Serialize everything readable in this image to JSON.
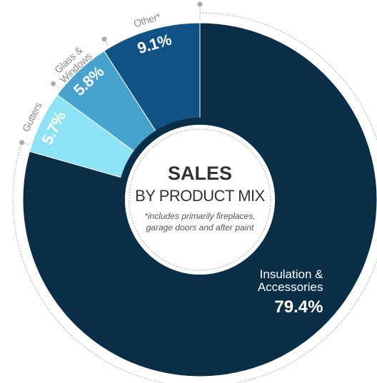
{
  "chart_data": {
    "type": "pie",
    "title": "SALES",
    "subtitle": "BY PRODUCT MIX",
    "note": "*includes primarily fireplaces, garage doors and after paint",
    "categories": [
      "Insulation & Accessories",
      "Gutters",
      "Glass & Windows",
      "Other*"
    ],
    "values": [
      79.4,
      5.7,
      5.8,
      9.1
    ],
    "value_labels": [
      "79.4%",
      "5.7%",
      "5.8%",
      "9.1%"
    ],
    "colors": [
      "#0b2e47",
      "#8de3f5",
      "#46a3cd",
      "#0f5283"
    ]
  }
}
